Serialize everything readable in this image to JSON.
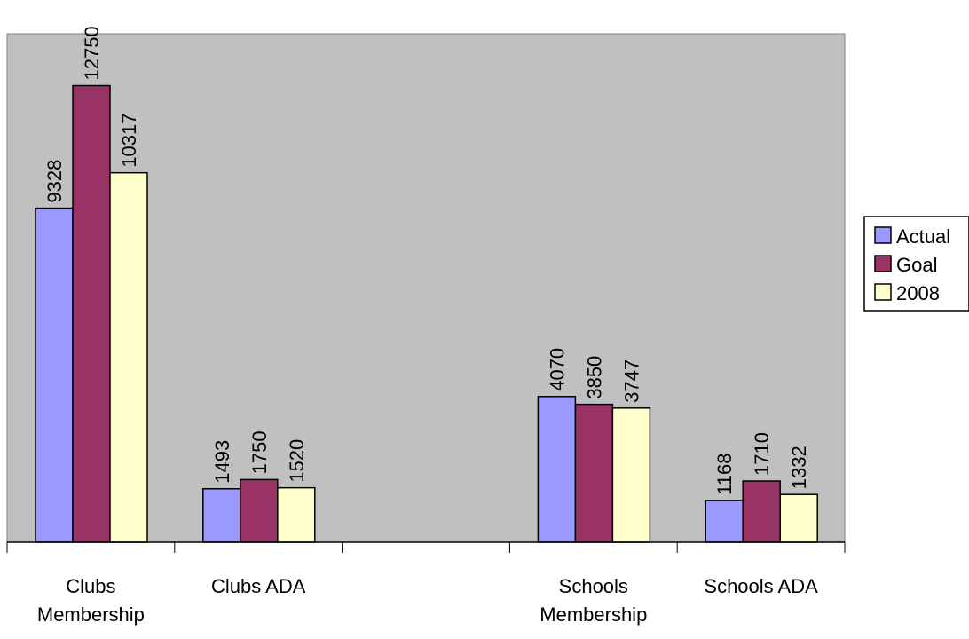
{
  "chart_data": {
    "type": "bar",
    "categories": [
      [
        "Clubs",
        "Membership"
      ],
      [
        "Clubs ADA"
      ],
      [],
      [
        "Schools",
        "Membership"
      ],
      [
        "Schools ADA"
      ]
    ],
    "series": [
      {
        "name": "Actual",
        "color": "#9999ff",
        "values": [
          9328,
          1493,
          null,
          4070,
          1168
        ]
      },
      {
        "name": "Goal",
        "color": "#993366",
        "values": [
          12750,
          1750,
          null,
          3850,
          1710
        ]
      },
      {
        "name": "2008",
        "color": "#ffffcc",
        "values": [
          10317,
          1520,
          null,
          3747,
          1332
        ]
      }
    ],
    "ylim": [
      0,
      14200
    ],
    "plot_background": "#c0c0c0",
    "grid": false,
    "data_labels": true,
    "legend_position": "right"
  }
}
